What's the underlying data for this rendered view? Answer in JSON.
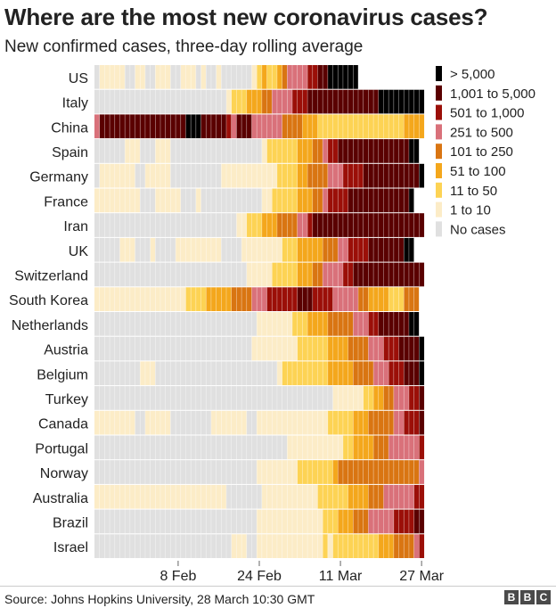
{
  "title": "Where are the most new coronavirus cases?",
  "subtitle": "New confirmed cases, three-day rolling average",
  "source": "Source: Johns Hopkins University, 28 March 10:30 GMT",
  "brand": [
    "B",
    "B",
    "C"
  ],
  "chart_data": {
    "type": "heatmap",
    "title": "Where are the most new coronavirus cases?",
    "subtitle": "New confirmed cases, three-day rolling average",
    "x_tick_labels": [
      "8 Feb",
      "24 Feb",
      "11 Mar",
      "27 Mar"
    ],
    "x_tick_day_index": [
      16,
      32,
      48,
      64
    ],
    "day_count": 65,
    "legend": [
      {
        "label": "> 5,000",
        "color": "#000000"
      },
      {
        "label": "1,001 to 5,000",
        "color": "#5a0000"
      },
      {
        "label": "501 to 1,000",
        "color": "#9b0f08"
      },
      {
        "label": "251 to 500",
        "color": "#d9717a"
      },
      {
        "label": "101 to 250",
        "color": "#d97512"
      },
      {
        "label": "51 to 100",
        "color": "#f4a71c"
      },
      {
        "label": "11 to 50",
        "color": "#fdd354"
      },
      {
        "label": "1 to 10",
        "color": "#fcecc7"
      },
      {
        "label": "No cases",
        "color": "#e0e0e0"
      }
    ],
    "category_codes": "0 = no cases, 1 = 1-10, 2 = 11-50, 3 = 51-100, 4 = 101-250, 5 = 251-500, 6 = 501-1000, 7 = 1001-5000, 8 = >5000",
    "countries": [
      {
        "name": "US",
        "runs": [
          [
            0,
            1
          ],
          [
            1,
            2
          ],
          [
            1,
            3
          ],
          [
            0,
            2
          ],
          [
            1,
            2
          ],
          [
            0,
            2
          ],
          [
            1,
            3
          ],
          [
            0,
            2
          ],
          [
            1,
            3
          ],
          [
            0,
            1
          ],
          [
            1,
            1
          ],
          [
            0,
            2
          ],
          [
            1,
            1
          ],
          [
            0,
            6
          ],
          [
            1,
            1
          ],
          [
            2,
            1
          ],
          [
            3,
            1
          ],
          [
            2,
            2
          ],
          [
            3,
            1
          ],
          [
            4,
            1
          ],
          [
            5,
            4
          ],
          [
            6,
            2
          ],
          [
            7,
            2
          ],
          [
            8,
            6
          ]
        ]
      },
      {
        "name": "Italy",
        "runs": [
          [
            0,
            26
          ],
          [
            1,
            1
          ],
          [
            2,
            3
          ],
          [
            3,
            3
          ],
          [
            4,
            2
          ],
          [
            5,
            4
          ],
          [
            6,
            3
          ],
          [
            7,
            14
          ],
          [
            8,
            9
          ]
        ]
      },
      {
        "name": "China",
        "runs": [
          [
            5,
            1
          ],
          [
            7,
            17
          ],
          [
            8,
            3
          ],
          [
            7,
            5
          ],
          [
            6,
            1
          ],
          [
            5,
            1
          ],
          [
            7,
            3
          ],
          [
            5,
            6
          ],
          [
            4,
            4
          ],
          [
            3,
            3
          ],
          [
            2,
            17
          ],
          [
            3,
            4
          ],
          [
            4,
            1
          ]
        ]
      },
      {
        "name": "Spain",
        "runs": [
          [
            0,
            6
          ],
          [
            1,
            3
          ],
          [
            0,
            3
          ],
          [
            1,
            3
          ],
          [
            0,
            18
          ],
          [
            1,
            1
          ],
          [
            2,
            6
          ],
          [
            3,
            3
          ],
          [
            4,
            2
          ],
          [
            5,
            1
          ],
          [
            6,
            2
          ],
          [
            7,
            14
          ],
          [
            8,
            2
          ]
        ]
      },
      {
        "name": "Germany",
        "runs": [
          [
            0,
            1
          ],
          [
            1,
            7
          ],
          [
            0,
            2
          ],
          [
            1,
            5
          ],
          [
            0,
            10
          ],
          [
            1,
            11
          ],
          [
            2,
            4
          ],
          [
            3,
            2
          ],
          [
            4,
            4
          ],
          [
            5,
            3
          ],
          [
            6,
            4
          ],
          [
            7,
            11
          ],
          [
            8,
            1
          ]
        ]
      },
      {
        "name": "France",
        "runs": [
          [
            1,
            9
          ],
          [
            0,
            3
          ],
          [
            1,
            5
          ],
          [
            0,
            3
          ],
          [
            1,
            1
          ],
          [
            0,
            12
          ],
          [
            1,
            2
          ],
          [
            2,
            5
          ],
          [
            3,
            3
          ],
          [
            4,
            2
          ],
          [
            5,
            1
          ],
          [
            6,
            4
          ],
          [
            7,
            12
          ],
          [
            8,
            1
          ]
        ]
      },
      {
        "name": "Iran",
        "runs": [
          [
            0,
            28
          ],
          [
            1,
            2
          ],
          [
            2,
            3
          ],
          [
            3,
            3
          ],
          [
            4,
            4
          ],
          [
            5,
            2
          ],
          [
            6,
            1
          ],
          [
            7,
            22
          ]
        ]
      },
      {
        "name": "UK",
        "runs": [
          [
            0,
            5
          ],
          [
            1,
            3
          ],
          [
            0,
            3
          ],
          [
            1,
            1
          ],
          [
            0,
            4
          ],
          [
            1,
            9
          ],
          [
            0,
            4
          ],
          [
            1,
            8
          ],
          [
            2,
            3
          ],
          [
            3,
            5
          ],
          [
            4,
            3
          ],
          [
            5,
            2
          ],
          [
            6,
            4
          ],
          [
            7,
            7
          ],
          [
            8,
            2
          ]
        ]
      },
      {
        "name": "Switzerland",
        "runs": [
          [
            0,
            30
          ],
          [
            1,
            5
          ],
          [
            2,
            5
          ],
          [
            3,
            3
          ],
          [
            4,
            2
          ],
          [
            5,
            2
          ],
          [
            5,
            2
          ],
          [
            6,
            2
          ],
          [
            7,
            14
          ]
        ]
      },
      {
        "name": "South Korea",
        "runs": [
          [
            1,
            18
          ],
          [
            2,
            4
          ],
          [
            3,
            5
          ],
          [
            4,
            4
          ],
          [
            5,
            3
          ],
          [
            6,
            6
          ],
          [
            7,
            3
          ],
          [
            6,
            4
          ],
          [
            5,
            5
          ],
          [
            4,
            2
          ],
          [
            3,
            4
          ],
          [
            2,
            3
          ],
          [
            4,
            3
          ]
        ]
      },
      {
        "name": "Netherlands",
        "runs": [
          [
            0,
            32
          ],
          [
            1,
            7
          ],
          [
            2,
            3
          ],
          [
            3,
            4
          ],
          [
            4,
            5
          ],
          [
            5,
            3
          ],
          [
            6,
            2
          ],
          [
            7,
            6
          ],
          [
            8,
            2
          ]
        ]
      },
      {
        "name": "Austria",
        "runs": [
          [
            0,
            31
          ],
          [
            1,
            9
          ],
          [
            2,
            6
          ],
          [
            3,
            4
          ],
          [
            4,
            4
          ],
          [
            5,
            3
          ],
          [
            6,
            3
          ],
          [
            7,
            4
          ],
          [
            8,
            1
          ]
        ]
      },
      {
        "name": "Belgium",
        "runs": [
          [
            0,
            9
          ],
          [
            1,
            3
          ],
          [
            0,
            24
          ],
          [
            1,
            1
          ],
          [
            2,
            9
          ],
          [
            3,
            5
          ],
          [
            4,
            4
          ],
          [
            5,
            3
          ],
          [
            6,
            3
          ],
          [
            7,
            3
          ],
          [
            8,
            1
          ]
        ]
      },
      {
        "name": "Turkey",
        "runs": [
          [
            0,
            47
          ],
          [
            1,
            6
          ],
          [
            2,
            2
          ],
          [
            3,
            2
          ],
          [
            4,
            2
          ],
          [
            5,
            3
          ],
          [
            6,
            2
          ],
          [
            7,
            1
          ]
        ]
      },
      {
        "name": "Canada",
        "runs": [
          [
            1,
            8
          ],
          [
            0,
            2
          ],
          [
            1,
            5
          ],
          [
            0,
            8
          ],
          [
            1,
            7
          ],
          [
            0,
            2
          ],
          [
            1,
            14
          ],
          [
            2,
            5
          ],
          [
            3,
            3
          ],
          [
            4,
            5
          ],
          [
            5,
            2
          ],
          [
            6,
            3
          ],
          [
            7,
            1
          ]
        ]
      },
      {
        "name": "Portugal",
        "runs": [
          [
            0,
            38
          ],
          [
            1,
            11
          ],
          [
            2,
            2
          ],
          [
            3,
            4
          ],
          [
            4,
            3
          ],
          [
            5,
            6
          ],
          [
            6,
            1
          ]
        ]
      },
      {
        "name": "Norway",
        "runs": [
          [
            0,
            32
          ],
          [
            1,
            8
          ],
          [
            2,
            7
          ],
          [
            3,
            1
          ],
          [
            4,
            16
          ],
          [
            5,
            1
          ]
        ]
      },
      {
        "name": "Australia",
        "runs": [
          [
            1,
            26
          ],
          [
            0,
            7
          ],
          [
            1,
            11
          ],
          [
            2,
            6
          ],
          [
            3,
            4
          ],
          [
            4,
            3
          ],
          [
            5,
            6
          ],
          [
            6,
            2
          ]
        ]
      },
      {
        "name": "Brazil",
        "runs": [
          [
            0,
            32
          ],
          [
            1,
            13
          ],
          [
            2,
            3
          ],
          [
            3,
            3
          ],
          [
            4,
            3
          ],
          [
            5,
            5
          ],
          [
            6,
            4
          ],
          [
            7,
            2
          ]
        ]
      },
      {
        "name": "Israel",
        "runs": [
          [
            0,
            27
          ],
          [
            1,
            3
          ],
          [
            0,
            2
          ],
          [
            1,
            13
          ],
          [
            2,
            1
          ],
          [
            1,
            1
          ],
          [
            2,
            9
          ],
          [
            3,
            3
          ],
          [
            4,
            4
          ],
          [
            5,
            1
          ],
          [
            6,
            2
          ]
        ]
      }
    ]
  }
}
